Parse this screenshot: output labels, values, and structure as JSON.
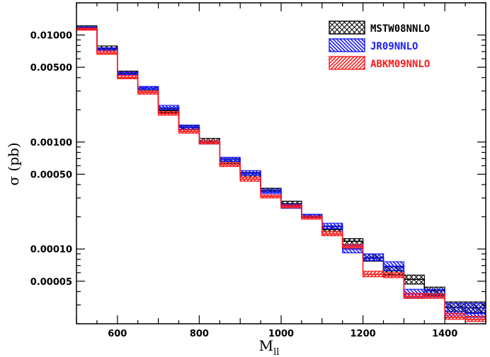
{
  "chart_data": {
    "type": "histogram-band",
    "xlabel": "M",
    "xlabel_subscript": "ll",
    "ylabel": "σ (pb)",
    "x_range": [
      500,
      1500
    ],
    "y_log": true,
    "y_range": [
      2e-05,
      0.02
    ],
    "x_ticks": [
      600,
      800,
      1000,
      1200,
      1400
    ],
    "y_ticks": [
      "0.01000",
      "0.00500",
      "0.00100",
      "0.00050",
      "0.00010",
      "0.00005"
    ],
    "y_tick_values": [
      0.01,
      0.005,
      0.001,
      0.0005,
      0.0001,
      5e-05
    ],
    "bins": [
      500,
      550,
      600,
      650,
      700,
      750,
      800,
      850,
      900,
      950,
      1000,
      1050,
      1100,
      1150,
      1200,
      1250,
      1300,
      1350,
      1400,
      1450,
      1500
    ],
    "series": [
      {
        "name": "MSTW08NNLO",
        "color": "#000000",
        "hatch": "crosshatch",
        "central": [
          0.0118,
          0.0075,
          0.0044,
          0.0031,
          0.00197,
          0.00137,
          0.001,
          0.00066,
          0.00049,
          0.00035,
          0.000265,
          0.000202,
          0.000152,
          0.000118,
          8.3e-05,
          6.25e-05,
          5.2e-05,
          4.08e-05,
          2.85e-05,
          2.82e-05
        ],
        "low": [
          0.0113,
          0.0071,
          0.0042,
          0.003,
          0.00188,
          0.0013,
          0.00096,
          0.00063,
          0.00047,
          0.00034,
          0.000255,
          0.000195,
          0.000145,
          0.00011,
          7.7e-05,
          5.75e-05,
          4.7e-05,
          3.7e-05,
          2.6e-05,
          2.55e-05
        ],
        "high": [
          0.0122,
          0.0079,
          0.0046,
          0.0033,
          0.00205,
          0.00142,
          0.00108,
          0.0007,
          0.00052,
          0.00037,
          0.00028,
          0.00021,
          0.000162,
          0.000125,
          9e-05,
          6.8e-05,
          5.7e-05,
          4.4e-05,
          3.2e-05,
          3.2e-05
        ]
      },
      {
        "name": "JR09NNLO",
        "color": "#1a1aff",
        "hatch": "diagonal-back",
        "central": [
          0.0115,
          0.0073,
          0.0043,
          0.0032,
          0.0021,
          0.00138,
          0.00099,
          0.00069,
          0.00051,
          0.00034,
          0.00025,
          0.000204,
          0.000164,
          0.0001,
          8.2e-05,
          6.9e-05,
          3.8e-05,
          3.8e-05,
          2.5e-05,
          2.5e-05
        ],
        "low": [
          0.0112,
          0.0071,
          0.0042,
          0.0031,
          0.00202,
          0.00132,
          0.00096,
          0.00066,
          0.00049,
          0.00033,
          0.00024,
          0.000198,
          0.000155,
          9.2e-05,
          7.8e-05,
          6.3e-05,
          3.5e-05,
          3.55e-05,
          2.3e-05,
          2.3e-05
        ],
        "high": [
          0.0119,
          0.0076,
          0.0045,
          0.0033,
          0.0022,
          0.00144,
          0.00103,
          0.00072,
          0.00054,
          0.00036,
          0.000262,
          0.000211,
          0.000174,
          0.000108,
          9e-05,
          7.6e-05,
          4.2e-05,
          4.2e-05,
          3.1e-05,
          3.1e-05
        ]
      },
      {
        "name": "ABKM09NNLO",
        "color": "#ff1a1a",
        "hatch": "diagonal-forward",
        "central": [
          0.0113,
          0.0068,
          0.004,
          0.0029,
          0.00184,
          0.00125,
          0.00099,
          0.00061,
          0.00045,
          0.00031,
          0.00025,
          0.000196,
          0.000138,
          0.000105,
          5.8e-05,
          5.6e-05,
          3.6e-05,
          3.6e-05,
          2.3e-05,
          2.2e-05
        ],
        "low": [
          0.0111,
          0.0066,
          0.0039,
          0.0028,
          0.00178,
          0.00121,
          0.00096,
          0.00059,
          0.00043,
          0.0003,
          0.000243,
          0.00019,
          0.000133,
          0.000102,
          5.5e-05,
          5.4e-05,
          3.45e-05,
          3.45e-05,
          2.2e-05,
          2.1e-05
        ],
        "high": [
          0.0116,
          0.0071,
          0.0042,
          0.003,
          0.00192,
          0.00131,
          0.00103,
          0.00064,
          0.00047,
          0.00032,
          0.000258,
          0.000203,
          0.000145,
          0.00011,
          6.2e-05,
          6e-05,
          3.85e-05,
          3.8e-05,
          2.5e-05,
          2.35e-05
        ]
      }
    ],
    "legend_position": "top-right"
  }
}
